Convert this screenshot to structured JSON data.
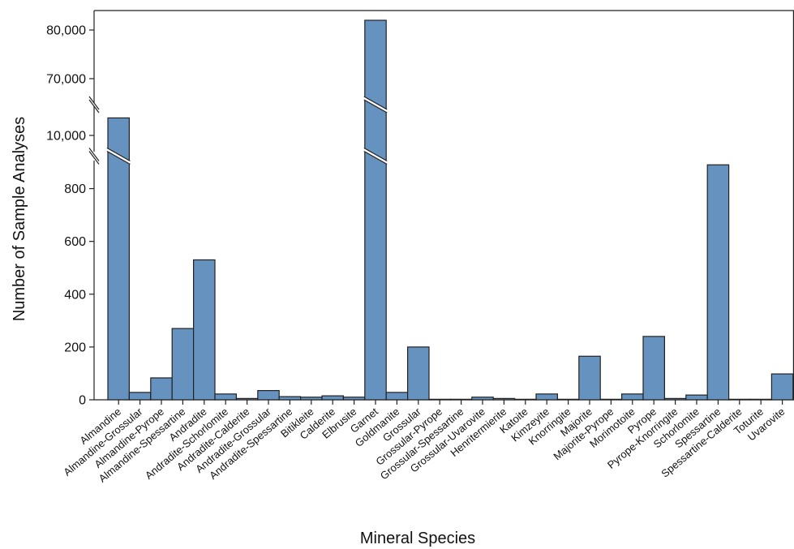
{
  "chart_data": {
    "type": "bar",
    "xlabel": "Mineral Species",
    "ylabel": "Number of Sample Analyses",
    "bar_color": "#6592bf",
    "axis_breaks": true,
    "segments": [
      {
        "ylim": [
          0,
          900
        ],
        "ticks": [
          0,
          200,
          400,
          600,
          800
        ],
        "tick_labels": [
          "0",
          "200",
          "400",
          "600",
          "800"
        ]
      },
      {
        "ylim": [
          9500,
          11000
        ],
        "ticks": [
          10000
        ],
        "tick_labels": [
          "10,000"
        ]
      },
      {
        "ylim": [
          65000,
          84000
        ],
        "ticks": [
          70000,
          80000
        ],
        "tick_labels": [
          "70,000",
          "80,000"
        ]
      }
    ],
    "categories": [
      "Almandine",
      "Almandine-Grossular",
      "Almandine-Pyrope",
      "Almandine-Spessartine",
      "Andradite",
      "Andradite-Schorlomite",
      "Andradite-Calderite",
      "Andradite-Grossular",
      "Andradite-Spessartine",
      "Bitikleite",
      "Calderite",
      "Elbrusite",
      "Garnet",
      "Goldmanite",
      "Grossular",
      "Grossular-Pyrope",
      "Grossular-Spessartine",
      "Grossular-Uvarovite",
      "Henritermierite",
      "Katoite",
      "Kimzeyite",
      "Knorringite",
      "Majorite",
      "Majorite-Pyrope",
      "Morimotoite",
      "Pyrope",
      "Pyrope-Knorringite",
      "Schorlomite",
      "Spessartine",
      "Spessartine-Calderite",
      "Toturite",
      "Uvarovite"
    ],
    "values": [
      10600,
      28,
      83,
      270,
      530,
      22,
      5,
      35,
      12,
      10,
      15,
      10,
      82000,
      28,
      200,
      2,
      2,
      10,
      5,
      2,
      22,
      2,
      165,
      2,
      22,
      240,
      5,
      18,
      890,
      2,
      2,
      98
    ]
  }
}
